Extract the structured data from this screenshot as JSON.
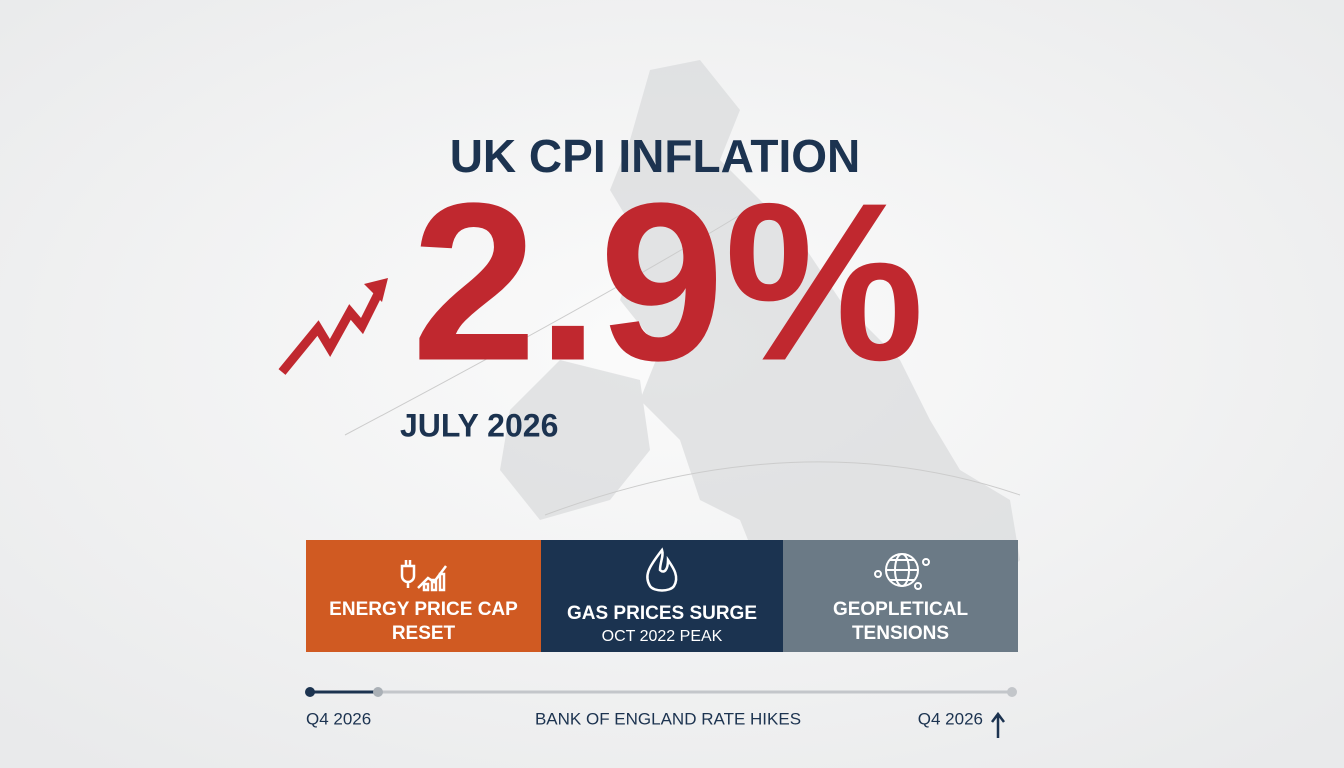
{
  "header": {
    "title": "UK CPI INFLATION",
    "headline": "2.9%",
    "date": "JULY 2026"
  },
  "cards": [
    {
      "label": "ENERGY PRICE CAP RESET"
    },
    {
      "label": "GAS PRICES SURGE",
      "sublabel": "OCT 2022 PEAK"
    },
    {
      "label": "GEOPLETICAL TENSIONS"
    }
  ],
  "timeline": {
    "start": "Q4 2026",
    "middle": "BANK OF ENGLAND RATE HIKES",
    "end": "Q4 2026"
  }
}
